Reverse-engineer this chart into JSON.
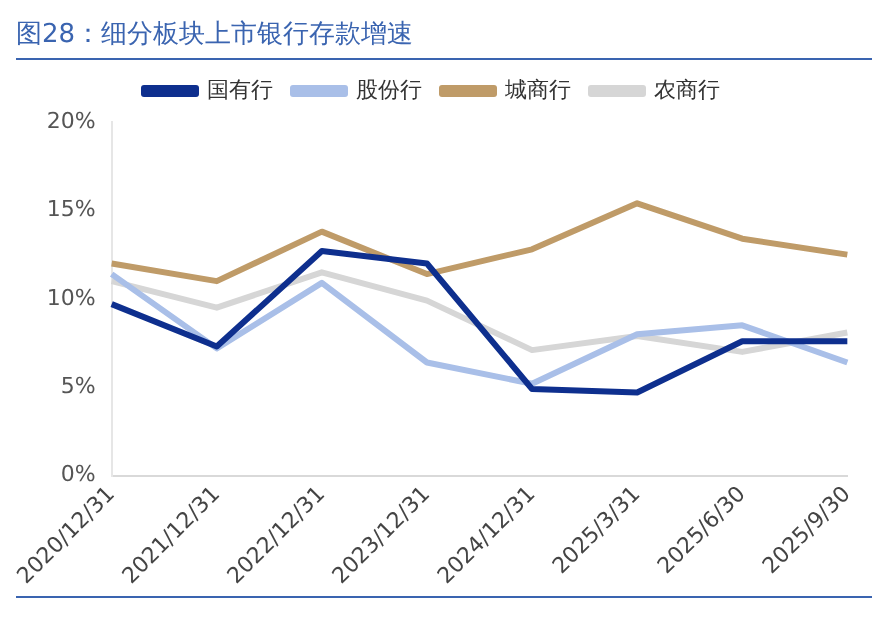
{
  "chart_data": {
    "type": "line",
    "title": "图28：细分板块上市银行存款增速",
    "categories": [
      "2020/12/31",
      "2021/12/31",
      "2022/12/31",
      "2023/12/31",
      "2024/12/31",
      "2025/3/31",
      "2025/6/30",
      "2025/9/30"
    ],
    "series": [
      {
        "name": "国有行",
        "color": "#0e2f8e",
        "values": [
          9.7,
          7.3,
          12.7,
          12.0,
          4.9,
          4.7,
          7.6,
          7.6
        ]
      },
      {
        "name": "股份行",
        "color": "#a9bfe8",
        "values": [
          11.4,
          7.2,
          10.9,
          6.4,
          5.2,
          8.0,
          8.5,
          6.4
        ]
      },
      {
        "name": "城商行",
        "color": "#bf9b68",
        "values": [
          12.0,
          11.0,
          13.8,
          11.4,
          12.8,
          15.4,
          13.4,
          12.5
        ]
      },
      {
        "name": "农商行",
        "color": "#d6d6d6",
        "values": [
          11.0,
          9.5,
          11.5,
          9.9,
          7.1,
          7.9,
          7.0,
          8.1
        ]
      }
    ],
    "ylim": [
      0,
      20
    ],
    "yticks": [
      {
        "value": 0,
        "label": "0%"
      },
      {
        "value": 5,
        "label": "5%"
      },
      {
        "value": 10,
        "label": "10%"
      },
      {
        "value": 15,
        "label": "15%"
      },
      {
        "value": 20,
        "label": "20%"
      }
    ],
    "grid": false,
    "legend": "top",
    "marker": "none",
    "line_style": "solid"
  }
}
